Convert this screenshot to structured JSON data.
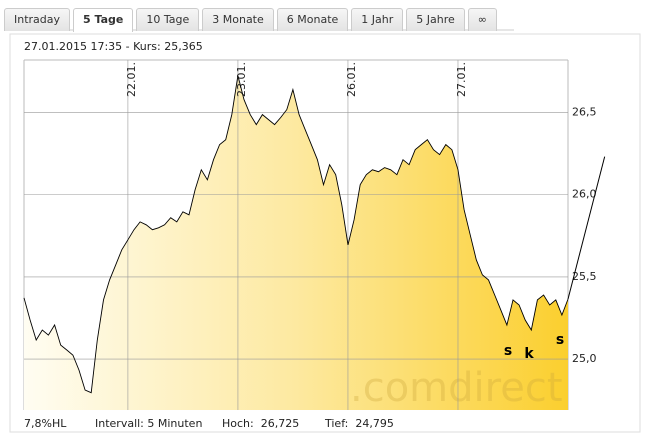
{
  "tabs": [
    "Intraday",
    "5 Tage",
    "10 Tage",
    "3 Monate",
    "6 Monate",
    "1 Jahr",
    "5 Jahre",
    "∞"
  ],
  "chart_data": {
    "type": "area",
    "header": "27.01.2015 17:35 - Kurs: 25,365",
    "values": [
      25.372,
      25.238,
      25.116,
      25.177,
      25.146,
      25.207,
      25.085,
      25.055,
      25.024,
      24.933,
      24.811,
      24.795,
      25.116,
      25.36,
      25.482,
      25.573,
      25.665,
      25.726,
      25.787,
      25.835,
      25.817,
      25.787,
      25.799,
      25.817,
      25.86,
      25.835,
      25.896,
      25.878,
      26.03,
      26.152,
      26.091,
      26.213,
      26.305,
      26.335,
      26.488,
      26.725,
      26.579,
      26.488,
      26.427,
      26.488,
      26.457,
      26.427,
      26.47,
      26.518,
      26.64,
      26.488,
      26.396,
      26.305,
      26.213,
      26.061,
      26.183,
      26.122,
      25.939,
      25.695,
      25.848,
      26.061,
      26.122,
      26.152,
      26.14,
      26.165,
      26.152,
      26.122,
      26.213,
      26.183,
      26.274,
      26.305,
      26.335,
      26.274,
      26.244,
      26.305,
      26.274,
      26.152,
      25.909,
      25.756,
      25.604,
      25.512,
      25.482,
      25.39,
      25.299,
      25.207,
      25.36,
      25.329,
      25.238,
      25.177,
      25.36,
      25.39,
      25.329,
      25.36,
      25.268,
      25.365
    ],
    "xlim": [
      0,
      89
    ],
    "xticks": [
      {
        "value": 17,
        "label": "22.01."
      },
      {
        "value": 35,
        "label": "23.01."
      },
      {
        "value": 53,
        "label": "26.01."
      },
      {
        "value": 71,
        "label": "27.01."
      }
    ],
    "ylim": [
      24.69,
      26.82
    ],
    "yticks": [
      {
        "value": 25.0,
        "label": "25,0"
      },
      {
        "value": 25.5,
        "label": "25,5"
      },
      {
        "value": 26.0,
        "label": "26,0"
      },
      {
        "value": 26.5,
        "label": "26,5"
      }
    ],
    "grid": true,
    "color": "#000000",
    "trend_line": {
      "x": [
        89,
        95
      ],
      "values": [
        25.365,
        26.232
      ]
    },
    "annotations": [
      "s",
      "k",
      "s"
    ],
    "watermark": ".comdirect",
    "footer": [
      "7,8%HL",
      "Intervall: 5 Minuten",
      "Hoch:  26,725",
      "Tief:  24,795"
    ]
  }
}
